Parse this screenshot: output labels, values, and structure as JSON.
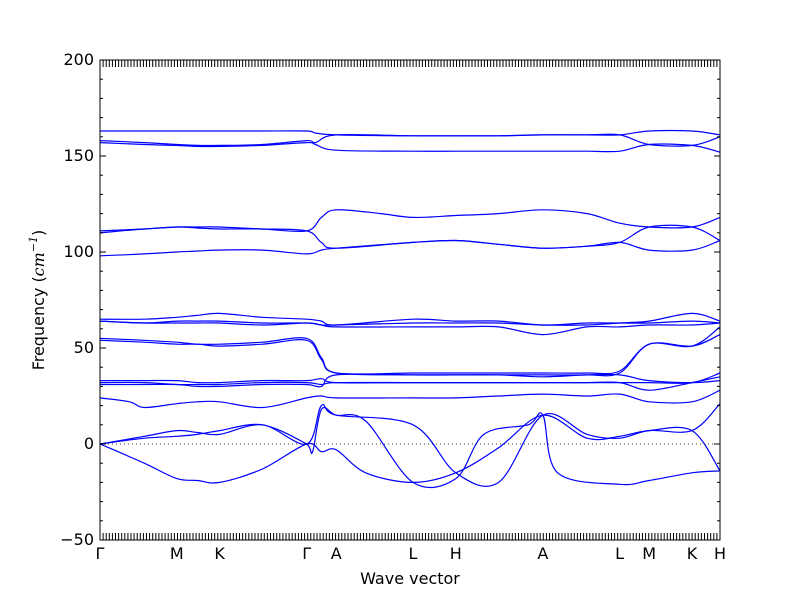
{
  "chart_data": {
    "type": "line",
    "xlabel": "Wave vector",
    "ylabel": {
      "prefix": "Frequency (",
      "unit_base": "cm",
      "unit_exp": "−1",
      "suffix": ")"
    },
    "ylim": [
      -50,
      200
    ],
    "yticks": [
      -50,
      0,
      50,
      100,
      150,
      200
    ],
    "ytick_labels": [
      "−50",
      "0",
      "50",
      "100",
      "150",
      "200"
    ],
    "xlim": [
      0,
      21
    ],
    "high_symmetry_points": [
      {
        "label": "Γ",
        "x": 0
      },
      {
        "label": "M",
        "x": 2.6
      },
      {
        "label": "K",
        "x": 4.05
      },
      {
        "label": "Γ",
        "x": 7.0
      },
      {
        "label": "A",
        "x": 8.0
      },
      {
        "label": "L",
        "x": 10.6
      },
      {
        "label": "H",
        "x": 12.05
      },
      {
        "label": "A",
        "x": 15.0
      },
      {
        "label": "L",
        "x": 17.6
      },
      {
        "label": "M",
        "x": 18.6
      },
      {
        "label": "K",
        "x": 20.05
      },
      {
        "label": "H",
        "x": 21.0
      }
    ],
    "zero_line": true,
    "series_color": "#0000ff",
    "series": [
      {
        "x": [
          0,
          1.5,
          2.6,
          3.3,
          4.05,
          5.5,
          7.0,
          7.3,
          8.0,
          10.6,
          12.05,
          13.5,
          15.0,
          16.5,
          17.6,
          18.6,
          20.05,
          21.0
        ],
        "y": [
          163,
          163,
          163,
          163,
          163,
          163,
          163,
          162,
          161,
          160.5,
          160.5,
          160.5,
          161,
          161,
          161,
          163,
          163,
          161
        ]
      },
      {
        "x": [
          0,
          1.5,
          2.6,
          3.3,
          4.05,
          5.5,
          7.0,
          7.3,
          8.0,
          10.6,
          12.05,
          13.5,
          15.0,
          16.5,
          17.6,
          18.6,
          20.05,
          21.0
        ],
        "y": [
          158,
          157,
          156,
          155.5,
          155.5,
          156,
          158,
          157,
          161,
          160.5,
          160.5,
          160.5,
          161,
          161,
          161,
          156,
          155.5,
          160
        ]
      },
      {
        "x": [
          0,
          1.5,
          2.6,
          3.3,
          4.05,
          5.5,
          7.0,
          7.3,
          8.0,
          10.6,
          12.05,
          13.5,
          15.0,
          16.5,
          17.6,
          18.6,
          20.05,
          21.0
        ],
        "y": [
          157,
          156,
          155.5,
          155,
          155,
          155.5,
          157,
          156,
          153,
          152.5,
          152.5,
          152.5,
          152.5,
          152.5,
          152.5,
          156,
          155.5,
          152
        ]
      },
      {
        "x": [
          0,
          1.5,
          2.6,
          3.3,
          4.05,
          5.5,
          7.0,
          7.5,
          8.0,
          9.5,
          10.6,
          12.05,
          13.5,
          15.0,
          16.5,
          17.6,
          18.6,
          20.05,
          21.0
        ],
        "y": [
          111,
          112,
          113,
          113,
          113,
          112,
          111,
          118,
          122,
          120,
          118,
          119,
          120,
          122,
          120,
          115,
          113,
          113,
          118
        ]
      },
      {
        "x": [
          0,
          1.5,
          2.6,
          3.3,
          4.05,
          5.5,
          7.0,
          7.5,
          8.0,
          10.6,
          12.05,
          13.5,
          15.0,
          16.5,
          17.6,
          18.6,
          20.05,
          21.0
        ],
        "y": [
          110,
          112,
          113,
          112.5,
          112,
          112,
          111,
          105,
          102,
          105,
          106,
          104,
          102,
          103,
          105,
          113,
          113,
          106
        ]
      },
      {
        "x": [
          0,
          1.5,
          2.6,
          3.3,
          4.05,
          5.5,
          7.0,
          7.5,
          8.0,
          10.6,
          12.05,
          13.5,
          15.0,
          16.5,
          17.6,
          18.6,
          20.05,
          21.0
        ],
        "y": [
          98,
          99,
          100,
          100.5,
          101,
          101,
          99,
          101,
          102,
          105,
          106,
          104,
          102,
          103,
          105,
          101,
          101,
          106
        ]
      },
      {
        "x": [
          0,
          1.5,
          2.6,
          3.3,
          4.05,
          5.5,
          7.0,
          7.5,
          8.0,
          10.6,
          12.05,
          13.5,
          15.0,
          16.5,
          17.6,
          18.6,
          20.05,
          21.0
        ],
        "y": [
          65,
          65,
          66,
          67,
          68,
          66,
          65,
          64,
          62,
          65,
          64,
          64,
          62,
          63,
          63,
          63,
          64,
          63
        ]
      },
      {
        "x": [
          0,
          1.5,
          2.6,
          3.3,
          4.05,
          5.5,
          7.0,
          7.5,
          8.0,
          10.6,
          12.05,
          13.5,
          15.0,
          16.5,
          17.6,
          18.6,
          20.05,
          21.0
        ],
        "y": [
          64,
          63,
          64,
          64,
          64,
          63,
          63,
          62,
          62,
          63,
          63,
          63,
          62,
          62,
          63,
          64,
          68,
          64
        ]
      },
      {
        "x": [
          0,
          1.5,
          2.6,
          3.3,
          4.05,
          5.5,
          7.0,
          7.5,
          8.0,
          10.6,
          12.05,
          13.5,
          15.0,
          16.5,
          17.6,
          18.6,
          20.05,
          21.0
        ],
        "y": [
          64,
          63,
          63,
          63,
          63,
          62,
          63,
          62,
          61,
          61,
          61,
          61,
          57,
          61,
          61,
          62,
          62,
          63
        ]
      },
      {
        "x": [
          0,
          1.5,
          2.6,
          3.3,
          4.05,
          5.5,
          7.0,
          7.5,
          8.0,
          10.6,
          12.05,
          13.5,
          15.0,
          16.5,
          17.6,
          18.6,
          20.05,
          21.0
        ],
        "y": [
          55,
          54,
          53,
          52,
          52,
          53,
          55,
          45,
          37,
          37,
          37,
          37,
          37,
          37,
          38,
          52,
          51,
          61
        ]
      },
      {
        "x": [
          0,
          1.5,
          2.6,
          3.3,
          4.05,
          5.5,
          7.0,
          7.5,
          8.0,
          10.6,
          12.05,
          13.5,
          15.0,
          16.5,
          17.6,
          18.6,
          20.05,
          21.0
        ],
        "y": [
          54,
          53,
          52,
          52,
          51,
          52,
          54,
          44,
          37,
          36,
          36,
          36,
          36,
          36,
          37,
          52,
          51,
          57
        ]
      },
      {
        "x": [
          0,
          1.5,
          2.6,
          3.3,
          4.05,
          5.5,
          7.0,
          7.5,
          8.0,
          10.6,
          12.05,
          13.5,
          15.0,
          16.5,
          17.6,
          18.6,
          20.05,
          21.0
        ],
        "y": [
          33,
          33,
          33,
          32,
          32,
          33,
          33,
          34,
          32,
          32,
          32,
          32,
          32,
          32,
          32,
          32,
          32,
          37
        ]
      },
      {
        "x": [
          0,
          1.5,
          2.6,
          3.3,
          4.05,
          5.5,
          7.0,
          7.5,
          8.0,
          10.6,
          12.05,
          13.5,
          15.0,
          16.5,
          17.6,
          18.6,
          20.05,
          21.0
        ],
        "y": [
          32,
          32,
          31,
          31,
          31,
          32,
          32,
          31,
          32,
          32,
          32,
          32,
          32,
          32,
          32,
          28,
          32,
          35
        ]
      },
      {
        "x": [
          0,
          1.5,
          2.6,
          3.3,
          4.05,
          5.5,
          7.0,
          7.5,
          8.0,
          10.6,
          12.05,
          13.5,
          15.0,
          16.5,
          17.6,
          18.6,
          20.05,
          21.0
        ],
        "y": [
          31,
          31,
          31,
          30,
          30,
          31,
          31,
          30,
          36,
          36,
          36,
          36,
          35,
          36,
          36,
          33,
          32,
          33
        ]
      },
      {
        "x": [
          0,
          1.0,
          1.5,
          2.6,
          3.3,
          4.05,
          5.5,
          7.0,
          7.5,
          8.0,
          10.6,
          12.05,
          13.5,
          15.0,
          16.5,
          17.6,
          18.6,
          20.05,
          21.0
        ],
        "y": [
          24,
          22,
          19,
          21,
          22,
          22,
          19,
          24,
          25,
          24,
          24,
          24,
          25,
          26,
          25,
          26,
          22,
          22,
          28
        ]
      },
      {
        "x": [
          0,
          1.5,
          2.6,
          3.3,
          4.05,
          5.5,
          7.0,
          7.5,
          8.0,
          10.6,
          12.05,
          13.5,
          15.0,
          16.5,
          17.6,
          18.6,
          20.05,
          21.0
        ],
        "y": [
          0,
          4,
          7,
          6,
          5,
          10,
          0,
          20,
          15,
          10,
          -15,
          -20,
          15,
          5,
          3,
          7,
          7,
          21
        ]
      },
      {
        "x": [
          0,
          1.5,
          2.6,
          3.3,
          4.05,
          5.5,
          7.0,
          7.2,
          7.5,
          8.0,
          9.0,
          10.6,
          12.05,
          13.0,
          14.5,
          15.0,
          15.5,
          17.6,
          18.6,
          20.05,
          21.0
        ],
        "y": [
          0,
          3,
          4,
          5,
          7,
          10,
          0,
          -4,
          18,
          15,
          12,
          -20,
          -18,
          5,
          10,
          15,
          -15,
          -21,
          -19,
          -15,
          -14
        ]
      },
      {
        "x": [
          0,
          1.5,
          2.6,
          3.3,
          4.05,
          5.5,
          7.0,
          7.5,
          8.0,
          9.0,
          10.6,
          12.05,
          13.5,
          15.0,
          16.5,
          17.6,
          18.6,
          20.05,
          21.0
        ],
        "y": [
          0,
          -10,
          -18,
          -19,
          -20,
          -13,
          0,
          -4,
          -3,
          -15,
          -20,
          -15,
          -2,
          15,
          3,
          4,
          7,
          7,
          -14
        ]
      }
    ]
  }
}
